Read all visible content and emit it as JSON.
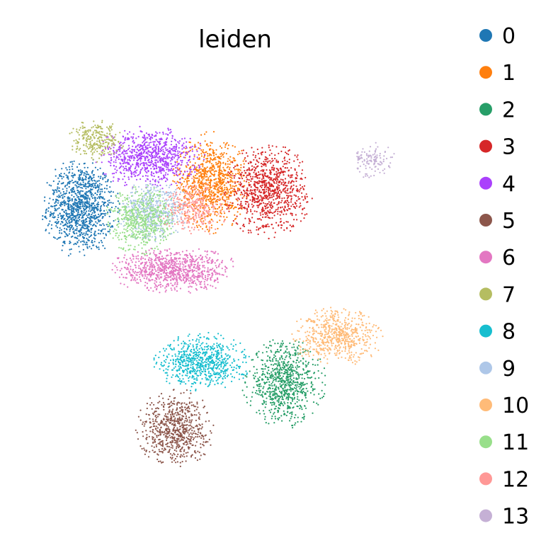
{
  "chart_data": {
    "type": "scatter",
    "title": "leiden",
    "xlabel": "",
    "ylabel": "",
    "grid": false,
    "axes_visible": false,
    "legend_position": "right",
    "legend_title": "",
    "legend": [
      {
        "label": "0",
        "color": "#1f77b4"
      },
      {
        "label": "1",
        "color": "#ff7f0e"
      },
      {
        "label": "2",
        "color": "#279e68"
      },
      {
        "label": "3",
        "color": "#d62728"
      },
      {
        "label": "4",
        "color": "#aa40fc"
      },
      {
        "label": "5",
        "color": "#8c564b"
      },
      {
        "label": "6",
        "color": "#e377c2"
      },
      {
        "label": "7",
        "color": "#b5bd61"
      },
      {
        "label": "8",
        "color": "#17becf"
      },
      {
        "label": "9",
        "color": "#aec7e8"
      },
      {
        "label": "10",
        "color": "#ffbb78"
      },
      {
        "label": "11",
        "color": "#98df8a"
      },
      {
        "label": "12",
        "color": "#ff9896"
      },
      {
        "label": "13",
        "color": "#c5b0d5"
      }
    ],
    "xlim": [
      0,
      10
    ],
    "ylim": [
      0,
      10
    ],
    "clusters": [
      {
        "label": "0",
        "center": [
          1.2,
          6.9
        ],
        "spread": [
          0.75,
          0.95
        ],
        "points": 1100
      },
      {
        "label": "1",
        "center": [
          4.4,
          7.5
        ],
        "spread": [
          0.75,
          0.95
        ],
        "points": 900
      },
      {
        "label": "2",
        "center": [
          6.2,
          2.7
        ],
        "spread": [
          0.8,
          0.85
        ],
        "points": 800
      },
      {
        "label": "3",
        "center": [
          5.8,
          7.3
        ],
        "spread": [
          0.85,
          0.9
        ],
        "points": 900
      },
      {
        "label": "4",
        "center": [
          2.9,
          8.1
        ],
        "spread": [
          1.05,
          0.6
        ],
        "points": 800
      },
      {
        "label": "5",
        "center": [
          3.5,
          1.6
        ],
        "spread": [
          0.75,
          0.75
        ],
        "points": 700
      },
      {
        "label": "6",
        "center": [
          3.5,
          5.4
        ],
        "spread": [
          1.25,
          0.45
        ],
        "points": 850
      },
      {
        "label": "7",
        "center": [
          1.6,
          8.5
        ],
        "spread": [
          0.55,
          0.4
        ],
        "points": 250
      },
      {
        "label": "8",
        "center": [
          4.2,
          3.2
        ],
        "spread": [
          0.95,
          0.55
        ],
        "points": 700
      },
      {
        "label": "9",
        "center": [
          3.0,
          6.8
        ],
        "spread": [
          0.7,
          0.6
        ],
        "points": 500
      },
      {
        "label": "10",
        "center": [
          7.5,
          3.8
        ],
        "spread": [
          0.9,
          0.55
        ],
        "points": 600
      },
      {
        "label": "11",
        "center": [
          2.7,
          6.6
        ],
        "spread": [
          0.7,
          0.65
        ],
        "points": 550
      },
      {
        "label": "12",
        "center": [
          4.0,
          6.9
        ],
        "spread": [
          0.7,
          0.55
        ],
        "points": 300
      },
      {
        "label": "13",
        "center": [
          8.4,
          8.0
        ],
        "spread": [
          0.45,
          0.35
        ],
        "points": 120
      }
    ]
  }
}
